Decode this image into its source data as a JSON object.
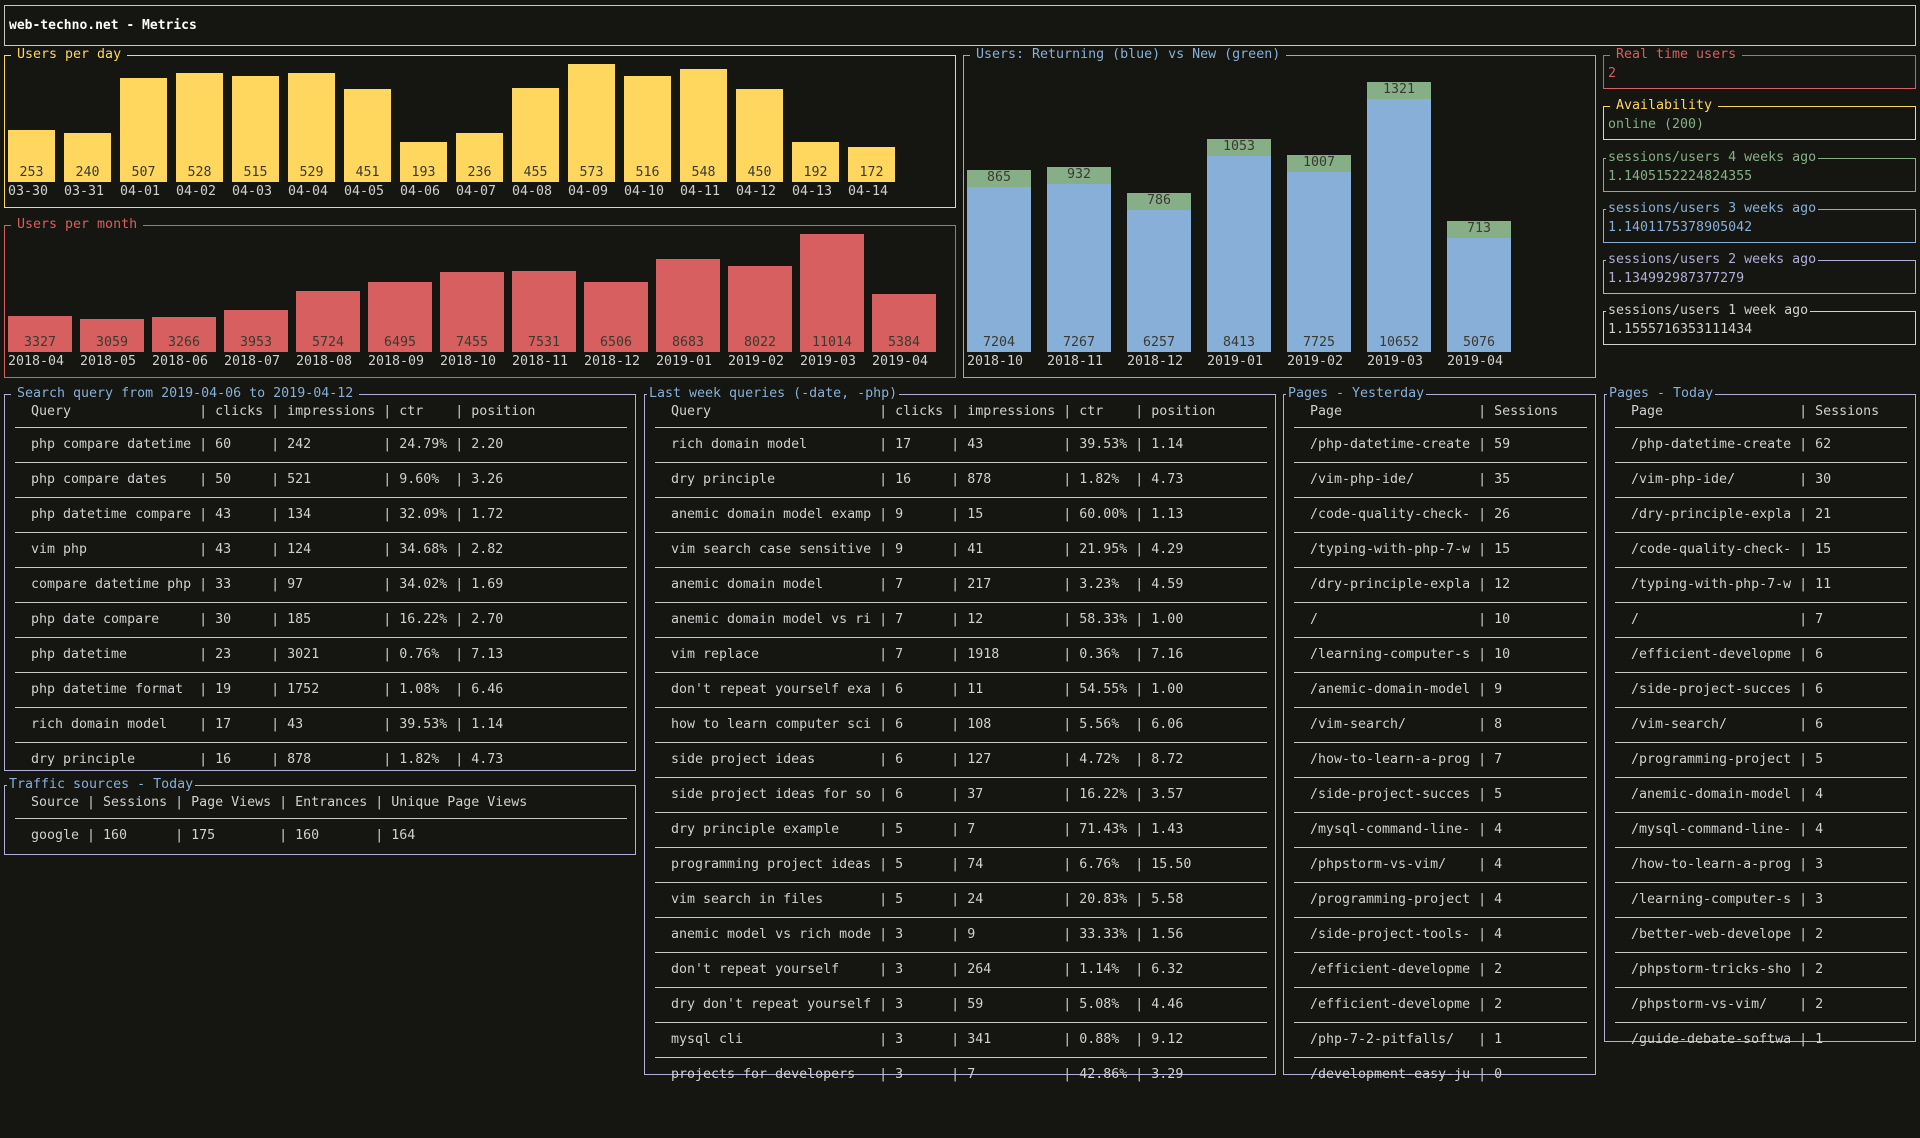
{
  "header": {
    "title": "web-techno.net - Metrics"
  },
  "colors": {
    "background": "#151511",
    "daily": "#ffd75f",
    "monthly": "#d75f5f",
    "returning": "#87afd7",
    "new": "#87af87",
    "table_border": "#afafd7",
    "text": "#d0d0d0"
  },
  "panels": {
    "users_per_day": {
      "title": "Users per day"
    },
    "users_per_month": {
      "title": "Users per month"
    },
    "returning_vs_new": {
      "title": "Users: Returning (blue) vs New (green)"
    },
    "real_time": {
      "title": "Real time users",
      "value": "2"
    },
    "availability": {
      "title": "Availability",
      "value": "online (200)"
    },
    "ratio_4w": {
      "title": "sessions/users 4 weeks ago",
      "value": "1.1405152224824355"
    },
    "ratio_3w": {
      "title": "sessions/users 3 weeks ago",
      "value": "1.1401175378905042"
    },
    "ratio_2w": {
      "title": "sessions/users 2 weeks ago",
      "value": "1.134992987377279"
    },
    "ratio_1w": {
      "title": "sessions/users 1 week ago",
      "value": "1.1555716353111434"
    }
  },
  "chart_data": [
    {
      "type": "bar",
      "title": "Users per day",
      "categories": [
        "03-30",
        "03-31",
        "04-01",
        "04-02",
        "04-03",
        "04-04",
        "04-05",
        "04-06",
        "04-07",
        "04-08",
        "04-09",
        "04-10",
        "04-11",
        "04-12",
        "04-13",
        "04-14"
      ],
      "values": [
        253,
        240,
        507,
        528,
        515,
        529,
        451,
        193,
        236,
        455,
        573,
        516,
        548,
        450,
        192,
        172
      ],
      "color": "#ffd75f"
    },
    {
      "type": "bar",
      "title": "Users per month",
      "categories": [
        "2018-04",
        "2018-05",
        "2018-06",
        "2018-07",
        "2018-08",
        "2018-09",
        "2018-10",
        "2018-11",
        "2018-12",
        "2019-01",
        "2019-02",
        "2019-03",
        "2019-04"
      ],
      "values": [
        3327,
        3059,
        3266,
        3953,
        5724,
        6495,
        7455,
        7531,
        6506,
        8683,
        8022,
        11014,
        5384
      ],
      "color": "#d75f5f"
    },
    {
      "type": "bar",
      "stacked": true,
      "title": "Users: Returning (blue) vs New (green)",
      "categories": [
        "2018-10",
        "2018-11",
        "2018-12",
        "2019-01",
        "2019-02",
        "2019-03",
        "2019-04"
      ],
      "series": [
        {
          "color": "#87afd7",
          "values": [
            7204,
            7267,
            6257,
            8413,
            7725,
            10652,
            5076
          ]
        },
        {
          "color": "#87af87",
          "values": [
            865,
            932,
            786,
            1053,
            1007,
            1321,
            713
          ]
        }
      ]
    }
  ],
  "tables": {
    "search": {
      "title": "Search query from 2019-04-06 to 2019-04-12",
      "columns": [
        "Query",
        "clicks",
        "impressions",
        "ctr",
        "position"
      ],
      "rows": [
        [
          "php compare datetime",
          "60",
          "242",
          "24.79%",
          "2.20"
        ],
        [
          "php compare dates",
          "50",
          "521",
          "9.60%",
          "3.26"
        ],
        [
          "php datetime compare",
          "43",
          "134",
          "32.09%",
          "1.72"
        ],
        [
          "vim php",
          "43",
          "124",
          "34.68%",
          "2.82"
        ],
        [
          "compare datetime php",
          "33",
          "97",
          "34.02%",
          "1.69"
        ],
        [
          "php date compare",
          "30",
          "185",
          "16.22%",
          "2.70"
        ],
        [
          "php datetime",
          "23",
          "3021",
          "0.76%",
          "7.13"
        ],
        [
          "php datetime format",
          "19",
          "1752",
          "1.08%",
          "6.46"
        ],
        [
          "rich domain model",
          "17",
          "43",
          "39.53%",
          "1.14"
        ],
        [
          "dry principle",
          "16",
          "878",
          "1.82%",
          "4.73"
        ]
      ]
    },
    "traffic": {
      "title": "Traffic sources - Today",
      "columns": [
        "Source",
        "Sessions",
        "Page Views",
        "Entrances",
        "Unique Page Views"
      ],
      "rows": [
        [
          "google",
          "160",
          "175",
          "160",
          "164"
        ]
      ]
    },
    "lastweek": {
      "title": "Last week queries (-date, -php)",
      "columns": [
        "Query",
        "clicks",
        "impressions",
        "ctr",
        "position"
      ],
      "rows": [
        [
          "rich domain model",
          "17",
          "43",
          "39.53%",
          "1.14"
        ],
        [
          "dry principle",
          "16",
          "878",
          "1.82%",
          "4.73"
        ],
        [
          "anemic domain model examp",
          "9",
          "15",
          "60.00%",
          "1.13"
        ],
        [
          "vim search case sensitive",
          "9",
          "41",
          "21.95%",
          "4.29"
        ],
        [
          "anemic domain model",
          "7",
          "217",
          "3.23%",
          "4.59"
        ],
        [
          "anemic domain model vs ri",
          "7",
          "12",
          "58.33%",
          "1.00"
        ],
        [
          "vim replace",
          "7",
          "1918",
          "0.36%",
          "7.16"
        ],
        [
          "don't repeat yourself exa",
          "6",
          "11",
          "54.55%",
          "1.00"
        ],
        [
          "how to learn computer sci",
          "6",
          "108",
          "5.56%",
          "6.06"
        ],
        [
          "side project ideas",
          "6",
          "127",
          "4.72%",
          "8.72"
        ],
        [
          "side project ideas for so",
          "6",
          "37",
          "16.22%",
          "3.57"
        ],
        [
          "dry principle example",
          "5",
          "7",
          "71.43%",
          "1.43"
        ],
        [
          "programming project ideas",
          "5",
          "74",
          "6.76%",
          "15.50"
        ],
        [
          "vim search in files",
          "5",
          "24",
          "20.83%",
          "5.58"
        ],
        [
          "anemic model vs rich mode",
          "3",
          "9",
          "33.33%",
          "1.56"
        ],
        [
          "don't repeat yourself",
          "3",
          "264",
          "1.14%",
          "6.32"
        ],
        [
          "dry don't repeat yourself",
          "3",
          "59",
          "5.08%",
          "4.46"
        ],
        [
          "mysql cli",
          "3",
          "341",
          "0.88%",
          "9.12"
        ],
        [
          "projects for developers",
          "3",
          "7",
          "42.86%",
          "3.29"
        ]
      ]
    },
    "pages_yesterday": {
      "title": "Pages - Yesterday",
      "columns": [
        "Page",
        "Sessions"
      ],
      "rows": [
        [
          "/php-datetime-create",
          "59"
        ],
        [
          "/vim-php-ide/",
          "35"
        ],
        [
          "/code-quality-check-",
          "26"
        ],
        [
          "/typing-with-php-7-w",
          "15"
        ],
        [
          "/dry-principle-expla",
          "12"
        ],
        [
          "/",
          "10"
        ],
        [
          "/learning-computer-s",
          "10"
        ],
        [
          "/anemic-domain-model",
          "9"
        ],
        [
          "/vim-search/",
          "8"
        ],
        [
          "/how-to-learn-a-prog",
          "7"
        ],
        [
          "/side-project-succes",
          "5"
        ],
        [
          "/mysql-command-line-",
          "4"
        ],
        [
          "/phpstorm-vs-vim/",
          "4"
        ],
        [
          "/programming-project",
          "4"
        ],
        [
          "/side-project-tools-",
          "4"
        ],
        [
          "/efficient-developme",
          "2"
        ],
        [
          "/efficient-developme",
          "2"
        ],
        [
          "/php-7-2-pitfalls/",
          "1"
        ],
        [
          "/development-easy-ju",
          "0"
        ]
      ]
    },
    "pages_today": {
      "title": "Pages - Today",
      "columns": [
        "Page",
        "Sessions"
      ],
      "rows": [
        [
          "/php-datetime-create",
          "62"
        ],
        [
          "/vim-php-ide/",
          "30"
        ],
        [
          "/dry-principle-expla",
          "21"
        ],
        [
          "/code-quality-check-",
          "15"
        ],
        [
          "/typing-with-php-7-w",
          "11"
        ],
        [
          "/",
          "7"
        ],
        [
          "/efficient-developme",
          "6"
        ],
        [
          "/side-project-succes",
          "6"
        ],
        [
          "/vim-search/",
          "6"
        ],
        [
          "/programming-project",
          "5"
        ],
        [
          "/anemic-domain-model",
          "4"
        ],
        [
          "/mysql-command-line-",
          "4"
        ],
        [
          "/how-to-learn-a-prog",
          "3"
        ],
        [
          "/learning-computer-s",
          "3"
        ],
        [
          "/better-web-develope",
          "2"
        ],
        [
          "/phpstorm-tricks-sho",
          "2"
        ],
        [
          "/phpstorm-vs-vim/",
          "2"
        ],
        [
          "/guide-debate-softwa",
          "1"
        ]
      ]
    }
  }
}
